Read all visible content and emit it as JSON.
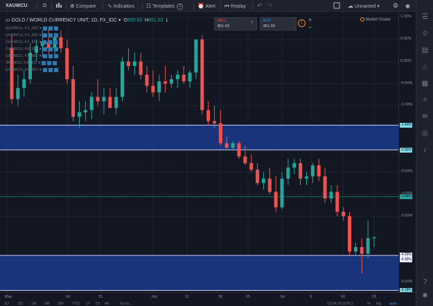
{
  "toolbar": {
    "symbol": "XAUWCU",
    "interval": "D",
    "compare": "Compare",
    "indicators": "Indicators",
    "templates": "Templates",
    "templates_count": "3",
    "alert": "Alert",
    "replay": "Replay",
    "layout_name": "Unnamed"
  },
  "legend": {
    "title": "GOLD / WORLD CURRENCY UNIT, 1D, FX_IDC",
    "o_label": "O",
    "o_value": "850.63",
    "h_label": "H",
    "h_value": "851.03",
    "l_label": "L",
    "overlays": [
      "AUDWCU, FX_IDC",
      "USDWCU, FX_IDC",
      "CHFWCU, FX_IDC",
      "CADWCU, FX_IDC",
      "GBPWCU, FX_IDC",
      "JPYWCU, FX_IDC",
      "EURWCU, FX_IDC"
    ]
  },
  "trade": {
    "sell_label": "SELL",
    "sell_price": "851.03",
    "spread": "0",
    "buy_label": "BUY",
    "buy_price": "851.03"
  },
  "market_status": "Market Closed",
  "price_axis": {
    "labels": [
      "1.00%",
      "0.50%",
      "0.00%",
      "-0.50%",
      "-1.00%",
      "-1.50%",
      "-2.00%",
      "-2.50%",
      "-3.00%",
      "-3.50%",
      "-4.50%",
      "-5.00%"
    ],
    "tags": [
      "-1.44%",
      "-2.00%",
      "-3.06%",
      "-4.39%",
      "-4.39%",
      "-5.18%"
    ]
  },
  "time_axis": {
    "labels": [
      "May",
      "14",
      "21",
      "Jun",
      "11",
      "18",
      "25",
      "Jul",
      "9",
      "16",
      "23"
    ]
  },
  "bottom_bar": {
    "timeframes": [
      "1D",
      "5D",
      "1M",
      "3M",
      "6M",
      "YTD",
      "1Y",
      "5Y",
      "All"
    ],
    "goto": "Go to...",
    "clock": "13:04:20 (UTC)",
    "pct": "%",
    "log": "log",
    "auto": "auto"
  },
  "colors": {
    "up": "#26a69a",
    "down": "#ef5350",
    "zone": "#1c3a8c",
    "background": "#131722"
  },
  "chart_data": {
    "type": "candlestick",
    "y_unit": "%",
    "ylim": [
      1.0,
      -5.2
    ],
    "candles": [
      {
        "o": 0.3,
        "h": 0.6,
        "l": -0.95,
        "c": -0.85
      },
      {
        "o": -0.85,
        "h": -0.3,
        "l": -1.0,
        "c": -0.6
      },
      {
        "o": -0.6,
        "h": -0.2,
        "l": -0.8,
        "c": -0.4
      },
      {
        "o": -0.4,
        "h": 0.4,
        "l": -0.5,
        "c": 0.2
      },
      {
        "o": 0.2,
        "h": 0.5,
        "l": 0.0,
        "c": 0.35
      },
      {
        "o": 0.35,
        "h": 0.7,
        "l": 0.1,
        "c": 0.45
      },
      {
        "o": 0.45,
        "h": 0.75,
        "l": 0.15,
        "c": 0.3
      },
      {
        "o": 0.3,
        "h": 0.65,
        "l": 0.15,
        "c": 0.55
      },
      {
        "o": 0.55,
        "h": 0.7,
        "l": 0.2,
        "c": 0.3
      },
      {
        "o": 0.3,
        "h": 0.5,
        "l": -0.5,
        "c": -0.4
      },
      {
        "o": -0.4,
        "h": -0.1,
        "l": -1.35,
        "c": -1.25
      },
      {
        "o": -1.25,
        "h": -0.9,
        "l": -1.5,
        "c": -1.15
      },
      {
        "o": -1.15,
        "h": -0.9,
        "l": -1.35,
        "c": -1.1
      },
      {
        "o": -1.1,
        "h": -0.7,
        "l": -1.3,
        "c": -0.8
      },
      {
        "o": -0.8,
        "h": -0.4,
        "l": -1.0,
        "c": -0.9
      },
      {
        "o": -0.9,
        "h": -0.6,
        "l": -1.2,
        "c": -0.8
      },
      {
        "o": -0.8,
        "h": -0.6,
        "l": -1.0,
        "c": -1.05
      },
      {
        "o": -1.05,
        "h": -0.6,
        "l": -1.2,
        "c": -0.8
      },
      {
        "o": -0.8,
        "h": 0.1,
        "l": -0.9,
        "c": 0.0
      },
      {
        "o": 0.0,
        "h": 0.3,
        "l": -0.2,
        "c": -0.1
      },
      {
        "o": -0.1,
        "h": 0.2,
        "l": -0.3,
        "c": 0.0
      },
      {
        "o": 0.0,
        "h": 0.2,
        "l": -0.4,
        "c": -0.3
      },
      {
        "o": -0.3,
        "h": -0.1,
        "l": -0.7,
        "c": -0.55
      },
      {
        "o": -0.55,
        "h": -0.2,
        "l": -0.8,
        "c": -0.7
      },
      {
        "o": -0.7,
        "h": -0.3,
        "l": -0.9,
        "c": -0.45
      },
      {
        "o": -0.45,
        "h": -0.1,
        "l": -0.7,
        "c": -0.5
      },
      {
        "o": -0.5,
        "h": -0.3,
        "l": -0.6,
        "c": -0.4
      },
      {
        "o": -0.4,
        "h": -0.2,
        "l": -0.6,
        "c": -0.3
      },
      {
        "o": -0.3,
        "h": -0.1,
        "l": -0.5,
        "c": -0.45
      },
      {
        "o": -0.45,
        "h": -0.2,
        "l": -0.6,
        "c": -0.25
      },
      {
        "o": -0.25,
        "h": 0.5,
        "l": -0.4,
        "c": 0.5
      },
      {
        "o": 0.5,
        "h": 0.6,
        "l": -1.2,
        "c": -1.1
      },
      {
        "o": -1.1,
        "h": -0.9,
        "l": -1.45,
        "c": -1.35
      },
      {
        "o": -1.35,
        "h": -1.0,
        "l": -1.5,
        "c": -1.4
      },
      {
        "o": -1.4,
        "h": -1.1,
        "l": -1.9,
        "c": -1.85
      },
      {
        "o": -1.85,
        "h": -1.7,
        "l": -2.0,
        "c": -1.95
      },
      {
        "o": -1.95,
        "h": -1.8,
        "l": -2.0,
        "c": -1.85
      },
      {
        "o": -1.85,
        "h": -1.8,
        "l": -2.2,
        "c": -2.15
      },
      {
        "o": -2.15,
        "h": -1.9,
        "l": -2.35,
        "c": -2.3
      },
      {
        "o": -2.3,
        "h": -2.1,
        "l": -2.5,
        "c": -2.45
      },
      {
        "o": -2.45,
        "h": -2.3,
        "l": -2.8,
        "c": -2.75
      },
      {
        "o": -2.75,
        "h": -2.5,
        "l": -2.9,
        "c": -2.65
      },
      {
        "o": -2.65,
        "h": -2.4,
        "l": -3.0,
        "c": -2.95
      },
      {
        "o": -2.95,
        "h": -2.6,
        "l": -3.4,
        "c": -3.3
      },
      {
        "o": -3.3,
        "h": -2.5,
        "l": -3.35,
        "c": -2.65
      },
      {
        "o": -2.65,
        "h": -2.2,
        "l": -2.8,
        "c": -2.4
      },
      {
        "o": -2.4,
        "h": -2.2,
        "l": -2.55,
        "c": -2.3
      },
      {
        "o": -2.3,
        "h": -2.2,
        "l": -2.8,
        "c": -2.65
      },
      {
        "o": -2.65,
        "h": -2.5,
        "l": -2.8,
        "c": -2.6
      },
      {
        "o": -2.6,
        "h": -2.3,
        "l": -2.75,
        "c": -2.35
      },
      {
        "o": -2.35,
        "h": -2.2,
        "l": -2.7,
        "c": -2.6
      },
      {
        "o": -2.6,
        "h": -2.4,
        "l": -3.2,
        "c": -3.1
      },
      {
        "o": -3.1,
        "h": -2.8,
        "l": -3.2,
        "c": -2.95
      },
      {
        "o": -2.95,
        "h": -2.8,
        "l": -3.5,
        "c": -3.4
      },
      {
        "o": -3.4,
        "h": -3.3,
        "l": -3.6,
        "c": -3.5
      },
      {
        "o": -3.5,
        "h": -3.4,
        "l": -4.4,
        "c": -4.3
      },
      {
        "o": -4.3,
        "h": -4.1,
        "l": -4.4,
        "c": -4.2
      },
      {
        "o": -4.2,
        "h": -4.0,
        "l": -4.8,
        "c": -4.35
      },
      {
        "o": -4.35,
        "h": -3.6,
        "l": -4.45,
        "c": -4.0
      },
      {
        "o": -4.0,
        "h": -3.95,
        "l": -4.2,
        "c": -3.98
      }
    ],
    "zones": [
      {
        "top": -1.44,
        "bottom": -2.0
      },
      {
        "top": -4.39,
        "bottom": -5.18
      }
    ],
    "price_line": -3.06
  }
}
